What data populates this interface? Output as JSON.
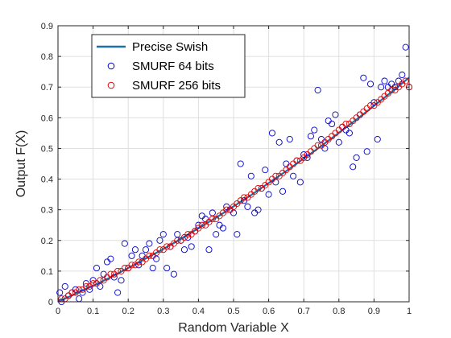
{
  "chart_data": {
    "type": "scatter",
    "title": "",
    "xlabel": "Random Variable X",
    "ylabel": "Output F(X)",
    "xlim": [
      0,
      1
    ],
    "ylim": [
      0,
      0.9
    ],
    "xticks": [
      "0",
      "0.1",
      "0.2",
      "0.3",
      "0.4",
      "0.5",
      "0.6",
      "0.7",
      "0.8",
      "0.9",
      "1"
    ],
    "yticks": [
      "0",
      "0.1",
      "0.2",
      "0.3",
      "0.4",
      "0.5",
      "0.6",
      "0.7",
      "0.8",
      "0.9"
    ],
    "grid": true,
    "legend_position": "top-left",
    "series": [
      {
        "name": "Precise Swish",
        "kind": "line",
        "color": "#1f6fa8",
        "x": [
          0,
          0.05,
          0.1,
          0.15,
          0.2,
          0.25,
          0.3,
          0.35,
          0.4,
          0.45,
          0.5,
          0.55,
          0.6,
          0.65,
          0.7,
          0.75,
          0.8,
          0.85,
          0.9,
          0.95,
          1
        ],
        "y": [
          0,
          0.026,
          0.052,
          0.08,
          0.11,
          0.141,
          0.172,
          0.205,
          0.24,
          0.274,
          0.311,
          0.348,
          0.387,
          0.426,
          0.467,
          0.508,
          0.551,
          0.594,
          0.639,
          0.684,
          0.731
        ]
      },
      {
        "name": "SMURF 64 bits",
        "kind": "scatter",
        "color": "#0000cc",
        "x": [
          0.005,
          0.01,
          0.02,
          0.03,
          0.04,
          0.05,
          0.06,
          0.07,
          0.08,
          0.09,
          0.1,
          0.11,
          0.12,
          0.13,
          0.14,
          0.15,
          0.16,
          0.17,
          0.18,
          0.19,
          0.2,
          0.21,
          0.22,
          0.23,
          0.24,
          0.25,
          0.26,
          0.27,
          0.28,
          0.29,
          0.3,
          0.31,
          0.32,
          0.33,
          0.34,
          0.35,
          0.36,
          0.37,
          0.38,
          0.39,
          0.4,
          0.41,
          0.42,
          0.43,
          0.44,
          0.45,
          0.46,
          0.47,
          0.48,
          0.49,
          0.5,
          0.51,
          0.52,
          0.53,
          0.54,
          0.55,
          0.56,
          0.57,
          0.58,
          0.59,
          0.6,
          0.61,
          0.62,
          0.63,
          0.64,
          0.65,
          0.66,
          0.67,
          0.68,
          0.69,
          0.7,
          0.71,
          0.72,
          0.73,
          0.74,
          0.75,
          0.76,
          0.77,
          0.78,
          0.79,
          0.8,
          0.81,
          0.82,
          0.83,
          0.84,
          0.85,
          0.86,
          0.87,
          0.88,
          0.89,
          0.9,
          0.91,
          0.92,
          0.93,
          0.94,
          0.95,
          0.96,
          0.97,
          0.98,
          0.99,
          1.0
        ],
        "y": [
          0.03,
          0.0,
          0.05,
          0.02,
          0.03,
          0.04,
          0.01,
          0.03,
          0.06,
          0.04,
          0.07,
          0.11,
          0.05,
          0.09,
          0.13,
          0.14,
          0.08,
          0.03,
          0.07,
          0.19,
          0.11,
          0.15,
          0.17,
          0.12,
          0.15,
          0.17,
          0.19,
          0.11,
          0.14,
          0.2,
          0.22,
          0.11,
          0.18,
          0.09,
          0.22,
          0.2,
          0.17,
          0.21,
          0.18,
          0.23,
          0.25,
          0.28,
          0.27,
          0.17,
          0.29,
          0.22,
          0.25,
          0.24,
          0.31,
          0.3,
          0.29,
          0.22,
          0.45,
          0.33,
          0.31,
          0.41,
          0.29,
          0.3,
          0.37,
          0.43,
          0.35,
          0.55,
          0.39,
          0.52,
          0.36,
          0.45,
          0.53,
          0.41,
          0.46,
          0.39,
          0.48,
          0.47,
          0.54,
          0.56,
          0.69,
          0.53,
          0.5,
          0.59,
          0.58,
          0.61,
          0.52,
          0.57,
          0.56,
          0.55,
          0.44,
          0.47,
          0.61,
          0.73,
          0.49,
          0.71,
          0.65,
          0.53,
          0.7,
          0.72,
          0.7,
          0.71,
          0.7,
          0.72,
          0.74,
          0.83,
          0.7
        ]
      },
      {
        "name": "SMURF 256 bits",
        "kind": "scatter",
        "color": "#dd0000",
        "x": [
          0.01,
          0.02,
          0.03,
          0.04,
          0.05,
          0.06,
          0.07,
          0.08,
          0.09,
          0.1,
          0.11,
          0.12,
          0.13,
          0.14,
          0.15,
          0.16,
          0.17,
          0.18,
          0.19,
          0.2,
          0.21,
          0.22,
          0.23,
          0.24,
          0.25,
          0.26,
          0.27,
          0.28,
          0.29,
          0.3,
          0.31,
          0.32,
          0.33,
          0.34,
          0.35,
          0.36,
          0.37,
          0.38,
          0.39,
          0.4,
          0.41,
          0.42,
          0.43,
          0.44,
          0.45,
          0.46,
          0.47,
          0.48,
          0.49,
          0.5,
          0.51,
          0.52,
          0.53,
          0.54,
          0.55,
          0.56,
          0.57,
          0.58,
          0.59,
          0.6,
          0.61,
          0.62,
          0.63,
          0.64,
          0.65,
          0.66,
          0.67,
          0.68,
          0.69,
          0.7,
          0.71,
          0.72,
          0.73,
          0.74,
          0.75,
          0.76,
          0.77,
          0.78,
          0.79,
          0.8,
          0.81,
          0.82,
          0.83,
          0.84,
          0.85,
          0.86,
          0.87,
          0.88,
          0.89,
          0.9,
          0.91,
          0.92,
          0.93,
          0.94,
          0.95,
          0.96,
          0.97,
          0.98,
          0.99,
          1.0
        ],
        "y": [
          0.01,
          0.01,
          0.02,
          0.03,
          0.03,
          0.04,
          0.04,
          0.05,
          0.05,
          0.06,
          0.06,
          0.07,
          0.07,
          0.08,
          0.09,
          0.09,
          0.1,
          0.1,
          0.11,
          0.11,
          0.12,
          0.12,
          0.13,
          0.13,
          0.14,
          0.15,
          0.15,
          0.16,
          0.17,
          0.17,
          0.18,
          0.18,
          0.19,
          0.2,
          0.2,
          0.21,
          0.22,
          0.22,
          0.23,
          0.24,
          0.25,
          0.25,
          0.26,
          0.27,
          0.27,
          0.28,
          0.29,
          0.3,
          0.3,
          0.31,
          0.32,
          0.33,
          0.34,
          0.34,
          0.35,
          0.36,
          0.37,
          0.37,
          0.38,
          0.39,
          0.4,
          0.41,
          0.41,
          0.42,
          0.43,
          0.44,
          0.45,
          0.46,
          0.46,
          0.47,
          0.48,
          0.49,
          0.5,
          0.51,
          0.51,
          0.52,
          0.53,
          0.54,
          0.55,
          0.56,
          0.57,
          0.58,
          0.58,
          0.59,
          0.6,
          0.61,
          0.62,
          0.63,
          0.64,
          0.64,
          0.65,
          0.66,
          0.67,
          0.68,
          0.69,
          0.69,
          0.7,
          0.71,
          0.72,
          0.7
        ]
      }
    ]
  }
}
